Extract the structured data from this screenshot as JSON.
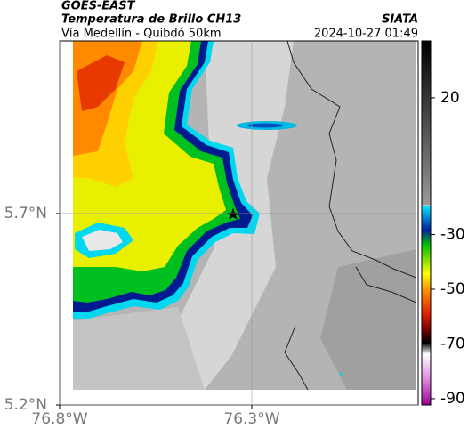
{
  "header": {
    "satellite": "GOES-EAST",
    "product": "Temperatura de Brillo CH13",
    "source": "SIATA",
    "region": "Vía Medellín - Quibdó 50km",
    "timestamp": "2024-10-27 01:49"
  },
  "map": {
    "latlim": [
      5.2,
      6.151
    ],
    "lonlim": [
      -76.8,
      -75.867
    ],
    "lat_ticks": [
      {
        "value": 5.2,
        "label": "5.2°N"
      },
      {
        "value": 5.7,
        "label": "5.7°N"
      }
    ],
    "lon_ticks": [
      {
        "value": -76.8,
        "label": "76.8°W"
      },
      {
        "value": -76.3,
        "label": "76.3°W"
      }
    ],
    "grid": true
  },
  "colorbar": {
    "lim": [
      -92.3,
      40.8
    ],
    "ticks": [
      20,
      -30,
      -50,
      -70,
      -90
    ]
  }
}
